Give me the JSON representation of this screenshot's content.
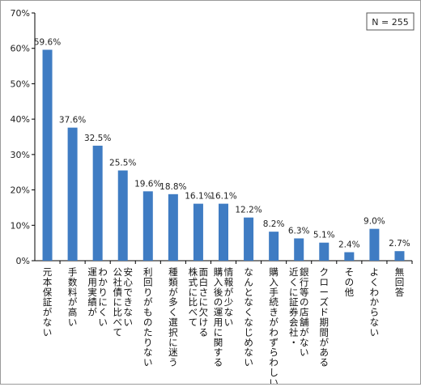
{
  "chart_data": {
    "type": "bar",
    "categories": [
      "元本保証がない",
      "手数料が高い",
      "わかりにくい運用実績が",
      "安心できない公社債に比べて",
      "利回りがものたりない",
      "種類が多く選択に迷う",
      "面白さに欠ける株式に比べて",
      "情報が少ない購入後の運用に関する",
      "なんとなくなじめない",
      "購入手続きがわずらわしい",
      "銀行等の店舗がない近くに証券会社・",
      "クローズド期間がある",
      "その他",
      "よくわからない",
      "無回答"
    ],
    "category_lines": [
      [
        "元本保証がない"
      ],
      [
        "手数料が高い"
      ],
      [
        "わかりにくい",
        "運用実績が"
      ],
      [
        "安心できない",
        "公社債に比べて"
      ],
      [
        "利回りがものたりない"
      ],
      [
        "種類が多く選択に迷う"
      ],
      [
        "面白さに欠ける",
        "株式に比べて"
      ],
      [
        "情報が少ない",
        "購入後の運用に関する"
      ],
      [
        "なんとなくなじめない"
      ],
      [
        "購入手続きがわずらわしい"
      ],
      [
        "銀行等の店舗がない",
        "近くに証券会社・"
      ],
      [
        "クローズド期間がある"
      ],
      [
        "その他"
      ],
      [
        "よくわからない"
      ],
      [
        "無回答"
      ]
    ],
    "values": [
      59.6,
      37.6,
      32.5,
      25.5,
      19.6,
      18.8,
      16.1,
      16.1,
      12.2,
      8.2,
      6.3,
      5.1,
      2.4,
      9.0,
      2.7
    ],
    "value_labels": [
      "59.6%",
      "37.6%",
      "32.5%",
      "25.5%",
      "19.6%",
      "18.8%",
      "16.1%",
      "16.1%",
      "12.2%",
      "8.2%",
      "6.3%",
      "5.1%",
      "2.4%",
      "9.0%",
      "2.7%"
    ],
    "yticks": [
      "0%",
      "10%",
      "20%",
      "30%",
      "40%",
      "50%",
      "60%",
      "70%"
    ],
    "ylim": [
      0,
      70
    ],
    "annotation": "N = 255",
    "grid": false,
    "bar_color": "#3f7cc3"
  }
}
